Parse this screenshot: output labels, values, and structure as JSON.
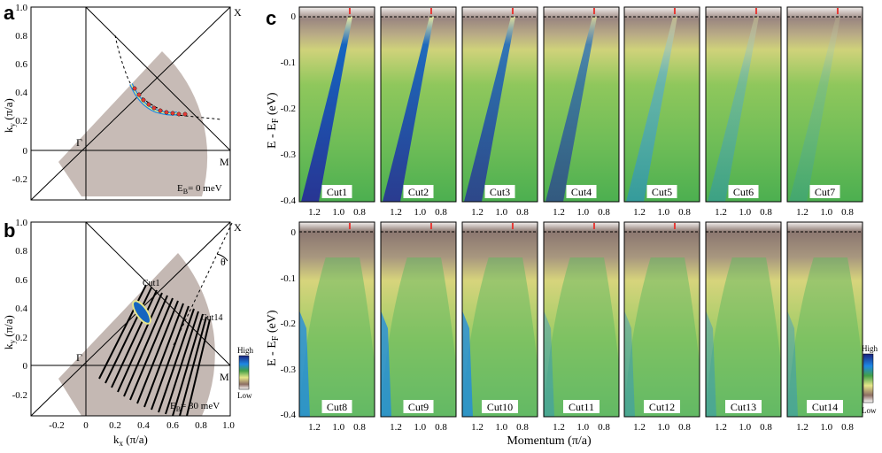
{
  "panel_a": {
    "letter": "a",
    "ky_label": "k",
    "ky_sub": "y",
    "ky_unit": " (π/a)",
    "x_ticks": [
      "-0.2",
      "0",
      "0.2",
      "0.4",
      "0.6",
      "0.8",
      "1.0"
    ],
    "y_ticks": [
      "1.0",
      "0.8",
      "0.6",
      "0.4",
      "0.2",
      "0",
      "-0.2"
    ],
    "gamma": "Γ",
    "m": "M",
    "x": "X",
    "eb_pre": "E",
    "eb_sub": "B",
    "eb_value": "= 0 meV"
  },
  "panel_b": {
    "letter": "b",
    "ky_label": "k",
    "ky_sub": "y",
    "ky_unit": " (π/a)",
    "kx_label": "k",
    "kx_sub": "x",
    "kx_unit": " (π/a)",
    "x_ticks": [
      "-0.2",
      "0",
      "0.2",
      "0.4",
      "0.6",
      "0.8",
      "1.0"
    ],
    "y_ticks": [
      "1.0",
      "0.8",
      "0.6",
      "0.4",
      "0.2",
      "0",
      "-0.2"
    ],
    "gamma": "Γ",
    "m": "M",
    "x": "X",
    "theta": "θ",
    "cut_first": "Cut1",
    "cut_last": "Cut14",
    "eb_pre": "E",
    "eb_sub": "B",
    "eb_value": "= 30 meV",
    "scale_high": "High",
    "scale_low": "Low"
  },
  "panel_c": {
    "letter": "c",
    "y_label_pre": "E - E",
    "y_label_sub": "F",
    "y_label_unit": " (eV)",
    "y_ticks": [
      "0",
      "-0.1",
      "-0.2",
      "-0.3",
      "-0.4"
    ],
    "x_ticks": [
      "1.2",
      "1.0",
      "0.8"
    ],
    "x_label": "Momentum (π/a)",
    "cuts": [
      "Cut1",
      "Cut2",
      "Cut3",
      "Cut4",
      "Cut5",
      "Cut6",
      "Cut7",
      "Cut8",
      "Cut9",
      "Cut10",
      "Cut11",
      "Cut12",
      "Cut13",
      "Cut14"
    ],
    "scale_high": "High",
    "scale_low": "Low"
  }
}
